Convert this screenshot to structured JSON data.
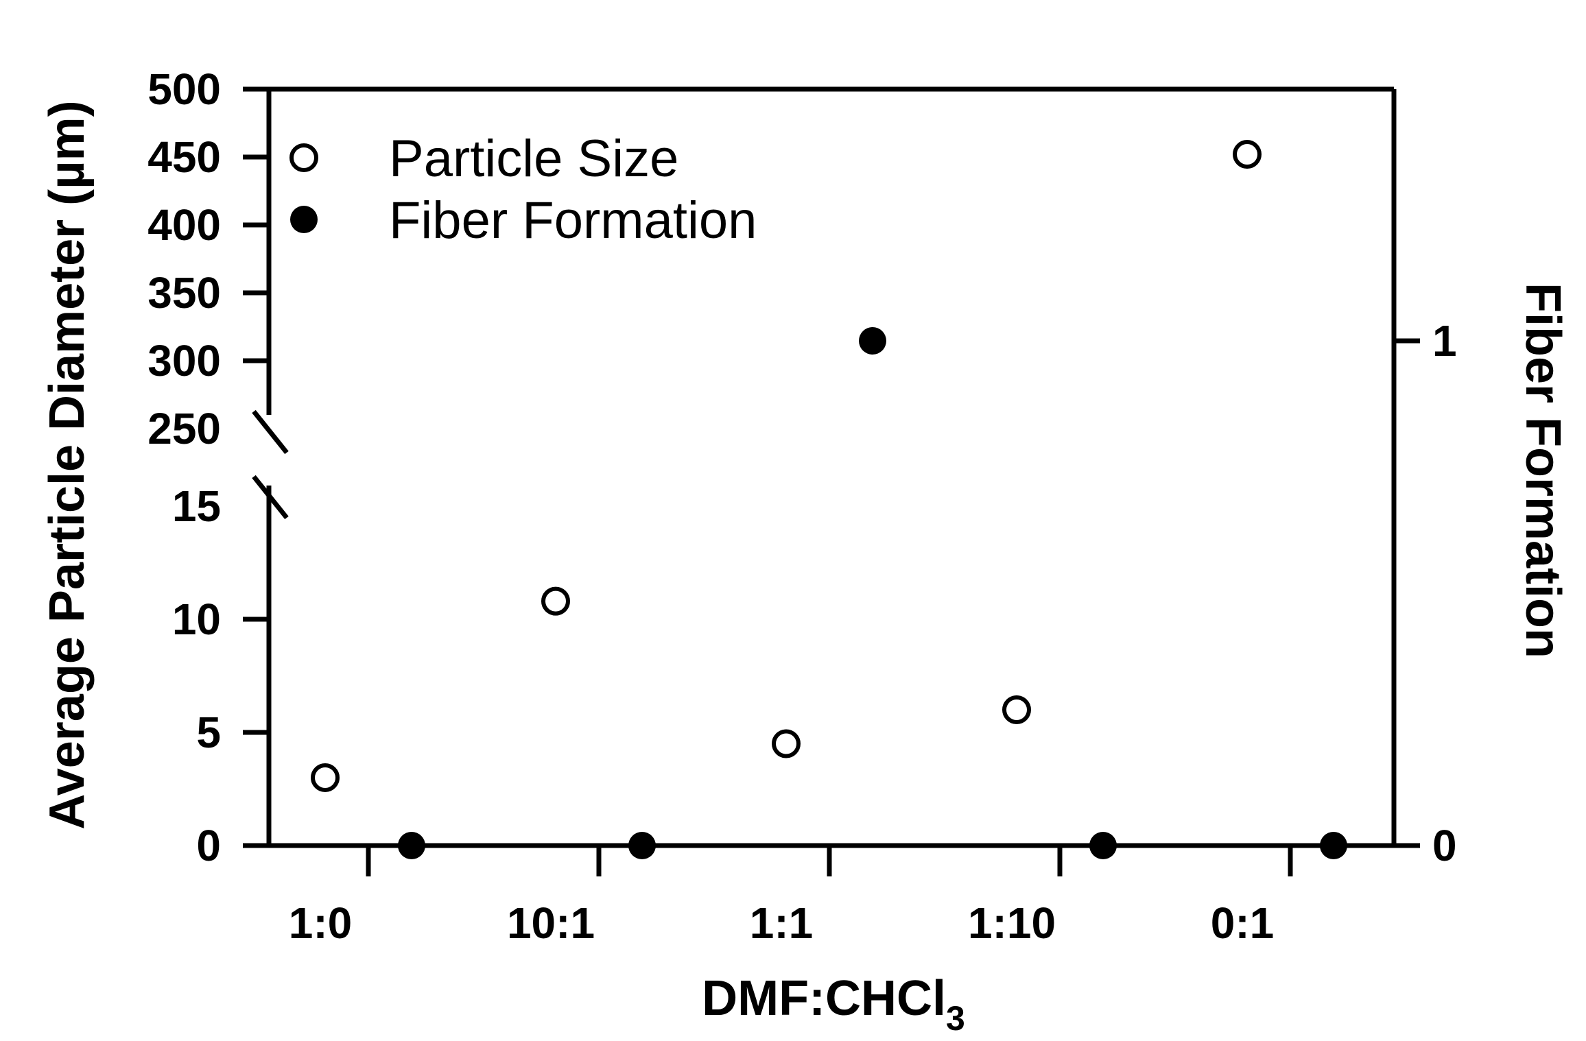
{
  "chart_data": {
    "type": "scatter",
    "xlabel": "DMF:CHCl",
    "xlabel_subscript": "3",
    "ylabel_left": "Average Particle Diameter (µm)",
    "ylabel_right": "Fiber Formation",
    "categories": [
      "1:0",
      "10:1",
      "1:1",
      "1:10",
      "0:1"
    ],
    "y_left_axis": {
      "broken": true,
      "lower_range": [
        0,
        15
      ],
      "upper_range": [
        250,
        500
      ],
      "ticks_lower": [
        "0",
        "5",
        "10",
        "15"
      ],
      "ticks_upper": [
        "250",
        "300",
        "350",
        "400",
        "450",
        "500"
      ]
    },
    "y_right_axis": {
      "range": [
        0,
        1
      ],
      "ticks": [
        "0",
        "1"
      ]
    },
    "series": [
      {
        "name": "Particle Size",
        "marker": "open-circle",
        "axis": "left",
        "values": [
          3.0,
          10.8,
          4.5,
          6.0,
          452
        ]
      },
      {
        "name": "Fiber Formation",
        "marker": "filled-circle",
        "axis": "right",
        "values": [
          0,
          0,
          1,
          0,
          0
        ]
      }
    ],
    "legend_position": "top-left",
    "grid": false
  }
}
